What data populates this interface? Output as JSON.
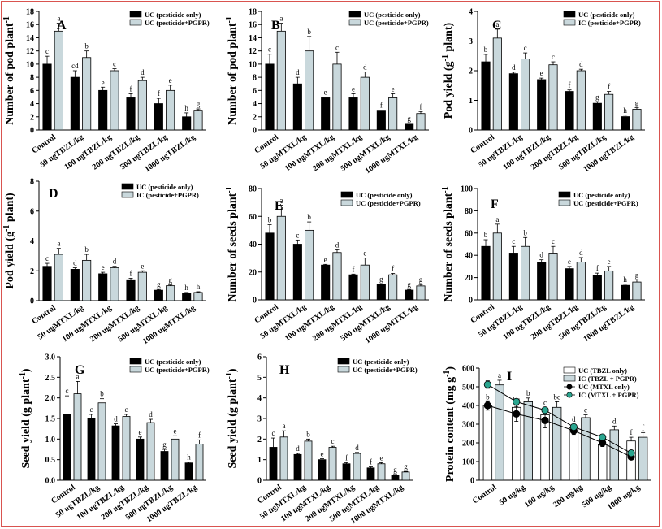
{
  "chart_data": [
    {
      "type": "bar",
      "panel": "A",
      "ylabel": "Number of pod plant^-1",
      "ylim": [
        0,
        18
      ],
      "yticks": [
        0,
        2,
        4,
        6,
        8,
        10,
        12,
        14,
        16,
        18
      ],
      "categories": [
        "Control",
        "50 ugTBZL/kg",
        "100 ugTBZL/kg",
        "200 ugTBZL/kg",
        "500 ugTBZL/kg",
        "1000 ugTBZL/kg"
      ],
      "series": [
        {
          "name": "UC (pesticide only)",
          "values": [
            10,
            8,
            6,
            5,
            4,
            2
          ],
          "errors": [
            1.2,
            1,
            0.5,
            0.5,
            0.8,
            0.6
          ],
          "letters": [
            "c",
            "cd",
            "e",
            "f",
            "f",
            "h"
          ]
        },
        {
          "name": "UC (pesticide+PGPR)",
          "values": [
            15,
            11,
            9,
            7.5,
            6,
            3
          ],
          "errors": [
            1.2,
            1,
            0.3,
            0.5,
            0.8,
            0.2
          ],
          "letters": [
            "a",
            "b",
            "c",
            "d",
            "e",
            "g"
          ]
        }
      ]
    },
    {
      "type": "bar",
      "panel": "B",
      "ylabel": "Number of pod plant^-1",
      "ylim": [
        0,
        18
      ],
      "yticks": [
        0,
        2,
        4,
        6,
        8,
        10,
        12,
        14,
        16,
        18
      ],
      "categories": [
        "Control",
        "50 ugMTXL/kg",
        "100 ugMTXL/kg",
        "200 ugMTXL/kg",
        "500 ugMTXL/kg",
        "1000 ugMTXL/kg"
      ],
      "series": [
        {
          "name": "UC (pesticide only)",
          "values": [
            10,
            7,
            5,
            5,
            3,
            1
          ],
          "errors": [
            1.5,
            1,
            0,
            0.5,
            0,
            0
          ],
          "letters": [
            "c",
            "d",
            "e",
            "e",
            "f",
            "g"
          ]
        },
        {
          "name": "UC (pesticide+PGPR)",
          "values": [
            15,
            12,
            10,
            8,
            5,
            2.5
          ],
          "errors": [
            1.2,
            2.2,
            1.8,
            0.8,
            0.5,
            0.3
          ],
          "letters": [
            "a",
            "b",
            "c",
            "d",
            "e",
            "f"
          ]
        }
      ]
    },
    {
      "type": "bar",
      "panel": "C",
      "ylabel": "Pod yield (g^-1 plant)",
      "ylim": [
        0,
        4
      ],
      "yticks": [
        0,
        1,
        2,
        3,
        4
      ],
      "categories": [
        "Control",
        "50 ugTBZL/kg",
        "100 ugTBZL/kg",
        "200 ugTBZL/kg",
        "500 ugTBZL/kg",
        "1000 ugTBZL/kg"
      ],
      "series": [
        {
          "name": "UC (pesticide only)",
          "values": [
            2.3,
            1.9,
            1.7,
            1.3,
            0.9,
            0.45
          ],
          "errors": [
            0.25,
            0.05,
            0.05,
            0.05,
            0.05,
            0.05
          ],
          "letters": [
            "b",
            "d",
            "e",
            "f",
            "g",
            "h"
          ]
        },
        {
          "name": "IC (pesticide+PGPR)",
          "values": [
            3.1,
            2.4,
            2.2,
            2.0,
            1.2,
            0.7
          ],
          "errors": [
            0.3,
            0.2,
            0.1,
            0.05,
            0.1,
            0.05
          ],
          "letters": [
            "a",
            "c",
            "c",
            "d",
            "f",
            "g"
          ]
        }
      ]
    },
    {
      "type": "bar",
      "panel": "D",
      "ylabel": "Pod yield (g^-1 plant)",
      "ylim": [
        0,
        8
      ],
      "yticks": [
        0,
        2,
        4,
        6,
        8
      ],
      "categories": [
        "Control",
        "50 ugMTXL/kg",
        "100 ugMTXL/kg",
        "200 ugMTXL/kg",
        "500 ugMTXL/kg",
        "1000 ugMTXL/kg"
      ],
      "series": [
        {
          "name": "UC (pesticide only)",
          "values": [
            2.3,
            2.1,
            1.8,
            1.4,
            0.7,
            0.5
          ],
          "errors": [
            0.2,
            0.1,
            0.1,
            0.1,
            0.05,
            0.05
          ],
          "letters": [
            "c",
            "d",
            "e",
            "f",
            "g",
            "h"
          ]
        },
        {
          "name": "IC (pesticide+PGPR)",
          "values": [
            3.1,
            2.7,
            2.2,
            1.9,
            1.0,
            0.55
          ],
          "errors": [
            0.4,
            0.4,
            0.1,
            0.1,
            0.05,
            0.05
          ],
          "letters": [
            "a",
            "b",
            "d",
            "e",
            "g",
            "h"
          ]
        }
      ]
    },
    {
      "type": "bar",
      "panel": "E",
      "ylabel": "Number of seeds plant^-1",
      "ylim": [
        0,
        80
      ],
      "yticks": [
        0,
        20,
        40,
        60,
        80
      ],
      "categories": [
        "Control",
        "50 ugMTXL/kg",
        "100 ugMTXL/kg",
        "200 ugMTXL/kg",
        "500 ugMTXL/kg",
        "1000 ugMTXL/kg"
      ],
      "series": [
        {
          "name": "UC (pesticide only)",
          "values": [
            48,
            40,
            25,
            18,
            11,
            7
          ],
          "errors": [
            6,
            3,
            0.5,
            0.5,
            0.5,
            0.5
          ],
          "letters": [
            "b",
            "c",
            "e",
            "f",
            "g",
            "g"
          ]
        },
        {
          "name": "UC (pesticide+PGPR)",
          "values": [
            60,
            50,
            34,
            25,
            18,
            10
          ],
          "errors": [
            8,
            6,
            2,
            5,
            1,
            1
          ],
          "letters": [
            "a",
            "b",
            "d",
            "e",
            "f",
            "g"
          ]
        }
      ]
    },
    {
      "type": "bar",
      "panel": "F",
      "ylabel": "Number of seeds plant^-1",
      "ylim": [
        0,
        100
      ],
      "yticks": [
        0,
        20,
        40,
        60,
        80,
        100
      ],
      "categories": [
        "Control",
        "50 ugTBZL/kg",
        "100 ugTBZL/kg",
        "200 ugTBZL/kg",
        "500 ugTBZL/kg",
        "1000 ugTBZL/kg"
      ],
      "series": [
        {
          "name": "UC (pesticide only)",
          "values": [
            48,
            42,
            34,
            28,
            22,
            13
          ],
          "errors": [
            6,
            6,
            2,
            2,
            2,
            1
          ],
          "letters": [
            "b",
            "c",
            "d",
            "e",
            "f",
            "h"
          ]
        },
        {
          "name": "UC (pesticide+PGPR)",
          "values": [
            60,
            48,
            42,
            34,
            26,
            16
          ],
          "errors": [
            8,
            8,
            6,
            4,
            4,
            2
          ],
          "letters": [
            "a",
            "b",
            "c",
            "d",
            "e",
            "g"
          ]
        }
      ]
    },
    {
      "type": "bar",
      "panel": "G",
      "ylabel": "Seed yield (g plant^-1)",
      "ylim": [
        0,
        3.0
      ],
      "yticks": [
        0.0,
        0.5,
        1.0,
        1.5,
        2.0,
        2.5,
        3.0
      ],
      "categories": [
        "Control",
        "50 ugTBZL/kg",
        "100 ugTBZL/kg",
        "200 ugTBZL/kg",
        "500 ugTBZL/kg",
        "1000 ugTBZL/kg"
      ],
      "series": [
        {
          "name": "UC (pesticide only)",
          "values": [
            1.6,
            1.5,
            1.32,
            1.0,
            0.7,
            0.42
          ],
          "errors": [
            0.45,
            0.1,
            0.05,
            0.05,
            0.05,
            0.02
          ],
          "letters": [
            "c",
            "c",
            "d",
            "e",
            "g",
            "h"
          ]
        },
        {
          "name": "UC (pesticide+PGPR)",
          "values": [
            2.1,
            1.88,
            1.55,
            1.4,
            1.0,
            0.88
          ],
          "errors": [
            0.3,
            0.1,
            0.05,
            0.08,
            0.08,
            0.1
          ],
          "letters": [
            "a",
            "b",
            "c",
            "d",
            "e",
            "f"
          ]
        }
      ]
    },
    {
      "type": "bar",
      "panel": "H",
      "ylabel": "Seed yield (g plant^-1)",
      "ylim": [
        0,
        6
      ],
      "yticks": [
        0,
        1,
        2,
        3,
        4,
        5,
        6
      ],
      "categories": [
        "Control",
        "50 ugMTXL/kg",
        "100 ugMTXL/kg",
        "200 ugMTXL/kg",
        "500 ugMTXL/kg",
        "1000 ugMTXL/kg"
      ],
      "series": [
        {
          "name": "UC (pesticide only)",
          "values": [
            1.6,
            1.25,
            1.0,
            0.8,
            0.6,
            0.25
          ],
          "errors": [
            0.45,
            0.05,
            0.05,
            0.05,
            0.05,
            0.03
          ],
          "letters": [
            "c",
            "d",
            "e",
            "f",
            "f",
            "g"
          ]
        },
        {
          "name": "UC (pesticide+PGPR)",
          "values": [
            2.1,
            1.9,
            1.6,
            1.3,
            0.8,
            0.4
          ],
          "errors": [
            0.3,
            0.1,
            0.05,
            0.05,
            0.05,
            0.03
          ],
          "letters": [
            "a",
            "b",
            "c",
            "d",
            "e",
            "g"
          ]
        }
      ]
    },
    {
      "type": "bar+line",
      "panel": "I",
      "ylabel": "Protein content (mg g^-1)",
      "ylim": [
        0,
        600
      ],
      "yticks": [
        0,
        100,
        200,
        300,
        400,
        500,
        600
      ],
      "categories": [
        "Control",
        "50 ug/kg",
        "100 ug/kg",
        "200 ug/kg",
        "500 ug/kg",
        "1000 ug/kg"
      ],
      "series": [
        {
          "name": "UC (TBZL only)",
          "kind": "bar",
          "values": [
            400,
            390,
            350,
            280,
            190,
            210
          ],
          "errors": [
            20,
            15,
            40,
            20,
            25,
            20
          ],
          "letters": [
            "b",
            "bc",
            "c",
            "d",
            "e",
            "f"
          ]
        },
        {
          "name": "IC (TBZL + PGPR)",
          "kind": "bar",
          "values": [
            510,
            420,
            390,
            335,
            270,
            230
          ],
          "errors": [
            25,
            20,
            30,
            15,
            20,
            25
          ],
          "letters": [
            "a",
            "b",
            "bc",
            "c",
            "d",
            "f"
          ]
        },
        {
          "name": "UC (MTXL only)",
          "kind": "line",
          "values": [
            400,
            355,
            320,
            265,
            200,
            125
          ],
          "errors": [
            25,
            40,
            40,
            20,
            20,
            15
          ],
          "letters": []
        },
        {
          "name": "IC (MTXL + PGPR)",
          "kind": "line",
          "values": [
            512,
            420,
            375,
            285,
            230,
            145
          ],
          "errors": [
            20,
            15,
            15,
            15,
            15,
            10
          ],
          "letters": []
        }
      ]
    }
  ]
}
